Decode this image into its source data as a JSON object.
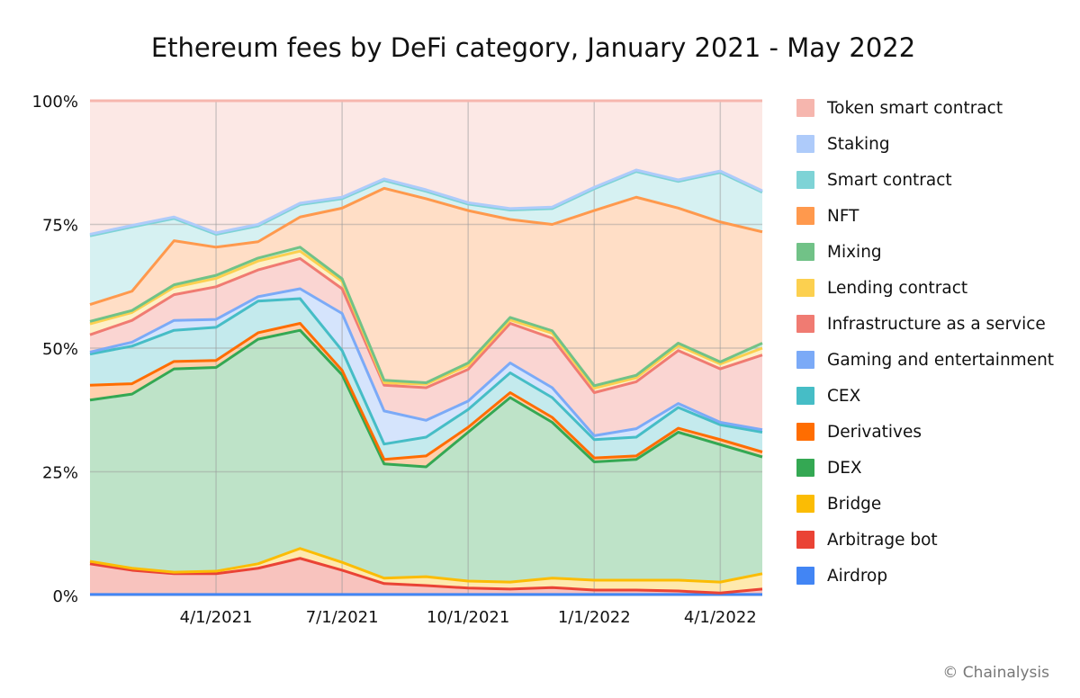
{
  "chart_data": {
    "type": "area",
    "stacked": "100%",
    "title": "Ethereum fees by DeFi category, January 2021 - May 2022",
    "x": [
      "1/1/2021",
      "2/1/2021",
      "3/1/2021",
      "4/1/2021",
      "5/1/2021",
      "6/1/2021",
      "7/1/2021",
      "8/1/2021",
      "9/1/2021",
      "10/1/2021",
      "11/1/2021",
      "12/1/2021",
      "1/1/2022",
      "2/1/2022",
      "3/1/2022",
      "4/1/2022",
      "5/1/2022"
    ],
    "x_tick_labels": [
      "4/1/2021",
      "7/1/2021",
      "10/1/2021",
      "1/1/2022",
      "4/1/2022"
    ],
    "y_tick_labels": [
      "0%",
      "25%",
      "50%",
      "75%",
      "100%"
    ],
    "ylim": [
      0,
      100
    ],
    "grid": true,
    "legend_position": "right",
    "series": [
      {
        "name": "Airdrop",
        "color": "#4285f4",
        "values": [
          0.2,
          0.2,
          0.2,
          0.2,
          0.2,
          0.2,
          0.2,
          0.2,
          0.2,
          0.2,
          0.2,
          0.2,
          0.2,
          0.2,
          0.2,
          0.2,
          0.2
        ]
      },
      {
        "name": "Arbitrage bot",
        "color": "#ea4335",
        "values": [
          6.2,
          4.9,
          4.2,
          4.2,
          5.3,
          7.3,
          4.9,
          2.2,
          1.8,
          1.3,
          1.1,
          1.4,
          0.9,
          0.9,
          0.7,
          0.3,
          1.1
        ]
      },
      {
        "name": "Bridge",
        "color": "#fbbc04",
        "values": [
          0.5,
          0.4,
          0.3,
          0.5,
          0.9,
          2.0,
          1.6,
          1.1,
          1.8,
          1.4,
          1.4,
          1.9,
          2.0,
          2.0,
          2.2,
          2.2,
          3.1
        ]
      },
      {
        "name": "DEX",
        "color": "#34a853",
        "values": [
          32.6,
          35.2,
          41.1,
          41.2,
          45.4,
          44.1,
          37.9,
          23.1,
          22.2,
          30.1,
          37.3,
          31.5,
          23.9,
          24.4,
          29.9,
          27.8,
          23.6
        ]
      },
      {
        "name": "Derivatives",
        "color": "#ff6d01",
        "values": [
          3.0,
          2.1,
          1.5,
          1.4,
          1.3,
          1.4,
          0.9,
          0.9,
          2.2,
          1.0,
          1.0,
          1.0,
          0.8,
          0.7,
          0.8,
          1.0,
          1.0
        ]
      },
      {
        "name": "CEX",
        "color": "#46bdc6",
        "values": [
          6.3,
          7.6,
          6.3,
          6.7,
          6.4,
          5.0,
          4.0,
          3.1,
          3.8,
          3.6,
          4.0,
          4.0,
          3.7,
          3.8,
          4.2,
          3.0,
          4.0
        ]
      },
      {
        "name": "Gaming and entertainment",
        "color": "#7baaf7",
        "values": [
          0.4,
          0.8,
          2.0,
          1.6,
          0.9,
          2.0,
          7.5,
          6.7,
          3.4,
          1.7,
          2.0,
          2.0,
          0.8,
          1.7,
          0.8,
          0.5,
          0.5
        ]
      },
      {
        "name": "Infrastructure as a service",
        "color": "#f07b72",
        "values": [
          3.5,
          4.4,
          5.2,
          6.6,
          5.4,
          6.1,
          5.0,
          5.2,
          6.6,
          6.4,
          8.0,
          10.0,
          8.7,
          9.5,
          10.7,
          10.8,
          15.1
        ]
      },
      {
        "name": "Lending contract",
        "color": "#fcd04f",
        "values": [
          2.2,
          1.6,
          1.5,
          1.7,
          1.8,
          1.5,
          1.5,
          0.5,
          0.7,
          0.8,
          0.7,
          1.0,
          0.9,
          0.8,
          1.0,
          1.0,
          1.4
        ]
      },
      {
        "name": "Mixing",
        "color": "#71c287",
        "values": [
          0.5,
          0.4,
          0.5,
          0.6,
          0.6,
          0.8,
          0.5,
          0.5,
          0.3,
          0.5,
          0.5,
          0.5,
          0.5,
          0.5,
          0.5,
          0.4,
          1.0
        ]
      },
      {
        "name": "NFT",
        "color": "#ff994d",
        "values": [
          3.4,
          3.9,
          8.9,
          5.7,
          3.3,
          6.1,
          14.3,
          38.8,
          37.2,
          30.8,
          19.8,
          21.5,
          35.4,
          36.0,
          27.3,
          28.3,
          22.5
        ]
      },
      {
        "name": "Smart contract",
        "color": "#7ed3d6",
        "values": [
          13.9,
          13.0,
          4.5,
          2.6,
          3.2,
          2.5,
          1.9,
          1.6,
          1.5,
          1.3,
          1.9,
          3.2,
          4.4,
          5.2,
          5.4,
          10.0,
          8.0
        ]
      },
      {
        "name": "Staking",
        "color": "#aecbfa",
        "values": [
          0.3,
          0.3,
          0.3,
          0.3,
          0.3,
          0.3,
          0.3,
          0.3,
          0.3,
          0.3,
          0.3,
          0.3,
          0.3,
          0.3,
          0.3,
          0.3,
          0.3
        ]
      },
      {
        "name": "Token smart contract",
        "color": "#f6b6ae",
        "values": [
          27.0,
          25.2,
          23.5,
          26.7,
          25.0,
          20.7,
          19.5,
          15.8,
          18.0,
          20.6,
          21.8,
          21.5,
          17.5,
          14.0,
          16.0,
          14.2,
          18.2
        ]
      }
    ]
  },
  "credit": "© Chainalysis"
}
